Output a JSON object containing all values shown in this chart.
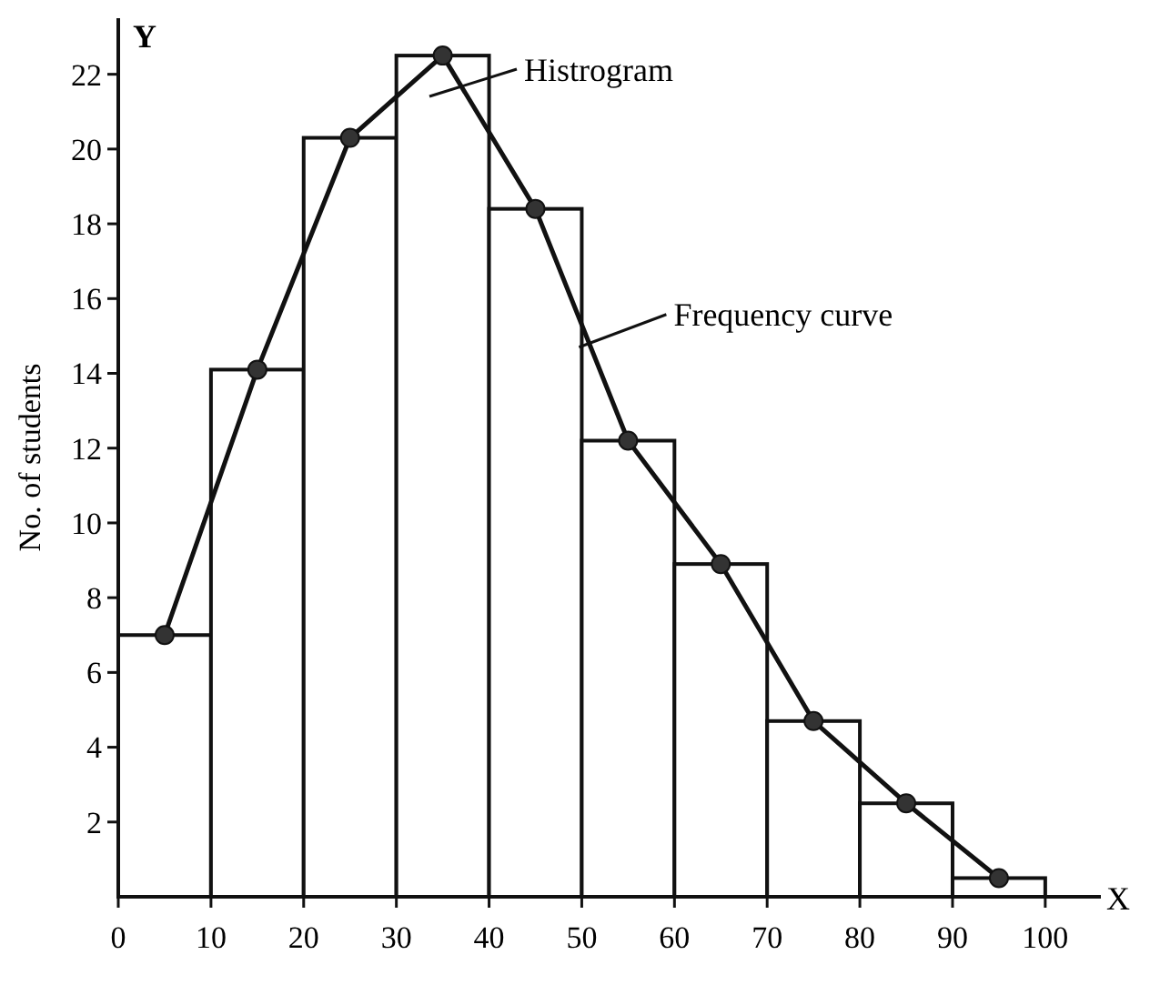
{
  "chart_data": {
    "type": "histogram",
    "ylabel": "No. of students",
    "bins": [
      0,
      10,
      20,
      30,
      40,
      50,
      60,
      70,
      80,
      90,
      100
    ],
    "values": [
      7,
      14.1,
      20.3,
      22.5,
      18.4,
      12.2,
      8.9,
      4.7,
      2.5,
      0.5
    ],
    "color": "#ffffff",
    "series": [
      {
        "type": "line",
        "color": "#111111",
        "x": [
          5,
          15,
          25,
          35,
          45,
          55,
          65,
          75,
          85,
          95
        ],
        "values": [
          7,
          14.1,
          20.3,
          22.5,
          18.4,
          12.2,
          8.9,
          4.7,
          2.5,
          0.5
        ]
      }
    ],
    "marker": "circle",
    "line_style": "solid",
    "xlim": [
      0,
      106
    ],
    "ylim": [
      0,
      23.5
    ],
    "xticks": [
      0,
      10,
      20,
      30,
      40,
      50,
      60,
      70,
      80,
      90,
      100
    ],
    "yticks": [
      2,
      4,
      6,
      8,
      10,
      12,
      14,
      16,
      18,
      20,
      22
    ],
    "grid": false,
    "annotations": [
      "Y",
      "X",
      "Histrogram",
      {
        "text": "Frequency curve",
        "x": 49.7,
        "y": 14.7
      }
    ]
  }
}
